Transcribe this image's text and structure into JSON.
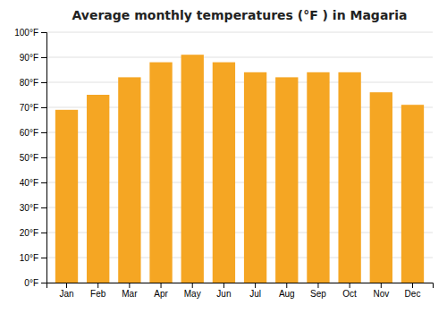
{
  "chart_data": {
    "type": "bar",
    "title": "Average monthly temperatures (°F ) in Magaria",
    "categories": [
      "Jan",
      "Feb",
      "Mar",
      "Apr",
      "May",
      "Jun",
      "Jul",
      "Aug",
      "Sep",
      "Oct",
      "Nov",
      "Dec"
    ],
    "values": [
      69,
      75,
      82,
      88,
      91,
      88,
      84,
      82,
      84,
      84,
      76,
      71
    ],
    "color": "#F5A623",
    "ylim": [
      0,
      100
    ],
    "yticks": [
      {
        "value": 0,
        "label": "0°F"
      },
      {
        "value": 10,
        "label": "10°F"
      },
      {
        "value": 20,
        "label": "20°F"
      },
      {
        "value": 30,
        "label": "30°F"
      },
      {
        "value": 40,
        "label": "40°F"
      },
      {
        "value": 50,
        "label": "50°F"
      },
      {
        "value": 60,
        "label": "60°F"
      },
      {
        "value": 70,
        "label": "70°F"
      },
      {
        "value": 80,
        "label": "80°F"
      },
      {
        "value": 90,
        "label": "90°F"
      },
      {
        "value": 100,
        "label": "100°F"
      }
    ],
    "grid": true
  }
}
